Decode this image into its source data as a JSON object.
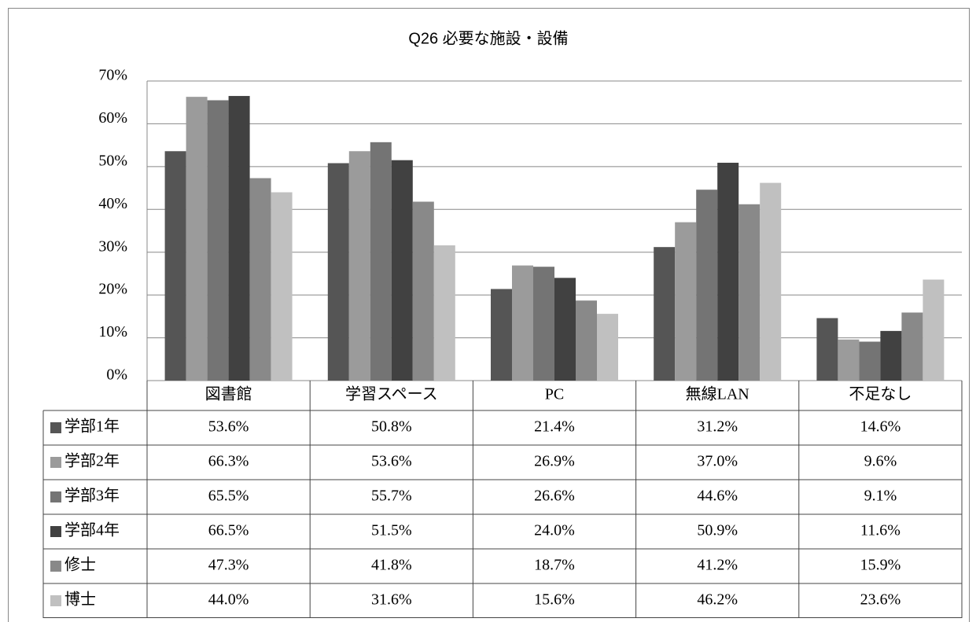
{
  "chart_data": {
    "type": "bar",
    "title": "Q26 必要な施設・設備",
    "categories": [
      "図書館",
      "学習スペース",
      "PC",
      "無線LAN",
      "不足なし"
    ],
    "series": [
      {
        "name": "学部1年",
        "color": "#555555",
        "values": [
          53.6,
          50.8,
          21.4,
          31.2,
          14.6
        ],
        "value_labels": [
          "53.6%",
          "50.8%",
          "21.4%",
          "31.2%",
          "14.6%"
        ]
      },
      {
        "name": "学部2年",
        "color": "#9b9b9b",
        "values": [
          66.3,
          53.6,
          26.9,
          37.0,
          9.6
        ],
        "value_labels": [
          "66.3%",
          "53.6%",
          "26.9%",
          "37.0%",
          "9.6%"
        ]
      },
      {
        "name": "学部3年",
        "color": "#747474",
        "values": [
          65.5,
          55.7,
          26.6,
          44.6,
          9.1
        ],
        "value_labels": [
          "65.5%",
          "55.7%",
          "26.6%",
          "44.6%",
          "9.1%"
        ]
      },
      {
        "name": "学部4年",
        "color": "#414141",
        "values": [
          66.5,
          51.5,
          24.0,
          50.9,
          11.6
        ],
        "value_labels": [
          "66.5%",
          "51.5%",
          "24.0%",
          "50.9%",
          "11.6%"
        ]
      },
      {
        "name": "修士",
        "color": "#898989",
        "values": [
          47.3,
          41.8,
          18.7,
          41.2,
          15.9
        ],
        "value_labels": [
          "47.3%",
          "41.8%",
          "18.7%",
          "41.2%",
          "15.9%"
        ]
      },
      {
        "name": "博士",
        "color": "#c0c0c0",
        "values": [
          44.0,
          31.6,
          15.6,
          46.2,
          23.6
        ],
        "value_labels": [
          "44.0%",
          "31.6%",
          "15.6%",
          "46.2%",
          "23.6%"
        ]
      }
    ],
    "ylim": [
      0,
      70
    ],
    "yticks": [
      {
        "value": 0,
        "label": "0%"
      },
      {
        "value": 10,
        "label": "10%"
      },
      {
        "value": 20,
        "label": "20%"
      },
      {
        "value": 30,
        "label": "30%"
      },
      {
        "value": 40,
        "label": "40%"
      },
      {
        "value": 50,
        "label": "50%"
      },
      {
        "value": 60,
        "label": "60%"
      },
      {
        "value": 70,
        "label": "70%"
      }
    ],
    "grid": true
  }
}
